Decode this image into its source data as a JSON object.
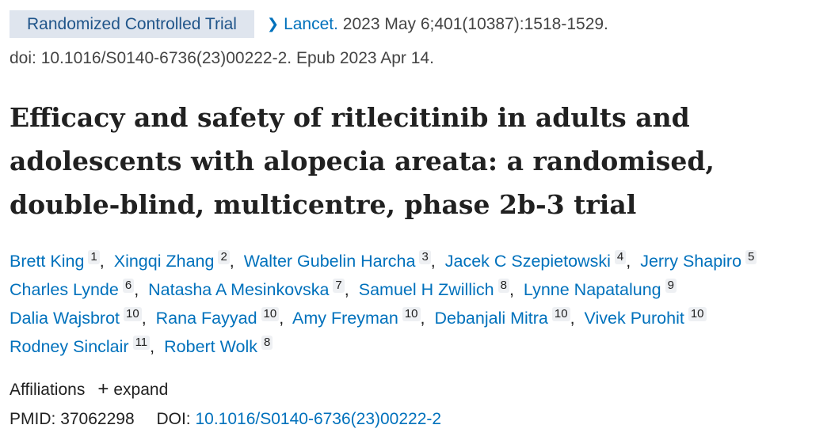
{
  "header": {
    "publication_type": "Randomized Controlled Trial",
    "journal": "Lancet.",
    "citation": "2023 May 6;401(10387):1518-1529.",
    "doi_line": "doi: 10.1016/S0140-6736(23)00222-2. Epub 2023 Apr 14."
  },
  "title": "Efficacy and safety of ritlecitinib in adults and adolescents with alopecia areata: a randomised, double-blind, multicentre, phase 2b-3 trial",
  "authors": [
    {
      "name": "Brett King",
      "affiliation": 1
    },
    {
      "name": "Xingqi Zhang",
      "affiliation": 2
    },
    {
      "name": "Walter Gubelin Harcha",
      "affiliation": 3
    },
    {
      "name": "Jacek C Szepietowski",
      "affiliation": 4
    },
    {
      "name": "Jerry Shapiro",
      "affiliation": 5
    },
    {
      "name": "Charles Lynde",
      "affiliation": 6
    },
    {
      "name": "Natasha A Mesinkovska",
      "affiliation": 7
    },
    {
      "name": "Samuel H Zwillich",
      "affiliation": 8
    },
    {
      "name": "Lynne Napatalung",
      "affiliation": 9
    },
    {
      "name": "Dalia Wajsbrot",
      "affiliation": 10
    },
    {
      "name": "Rana Fayyad",
      "affiliation": 10
    },
    {
      "name": "Amy Freyman",
      "affiliation": 10
    },
    {
      "name": "Debanjali Mitra",
      "affiliation": 10
    },
    {
      "name": "Vivek Purohit",
      "affiliation": 10
    },
    {
      "name": "Rodney Sinclair",
      "affiliation": 11
    },
    {
      "name": "Robert Wolk",
      "affiliation": 8
    }
  ],
  "affiliations": {
    "label": "Affiliations",
    "icon": "+",
    "action": "expand"
  },
  "identifiers": {
    "pmid_label": "PMID:",
    "pmid": "37062298",
    "doi_label": "DOI:",
    "doi": "10.1016/S0140-6736(23)00222-2"
  }
}
